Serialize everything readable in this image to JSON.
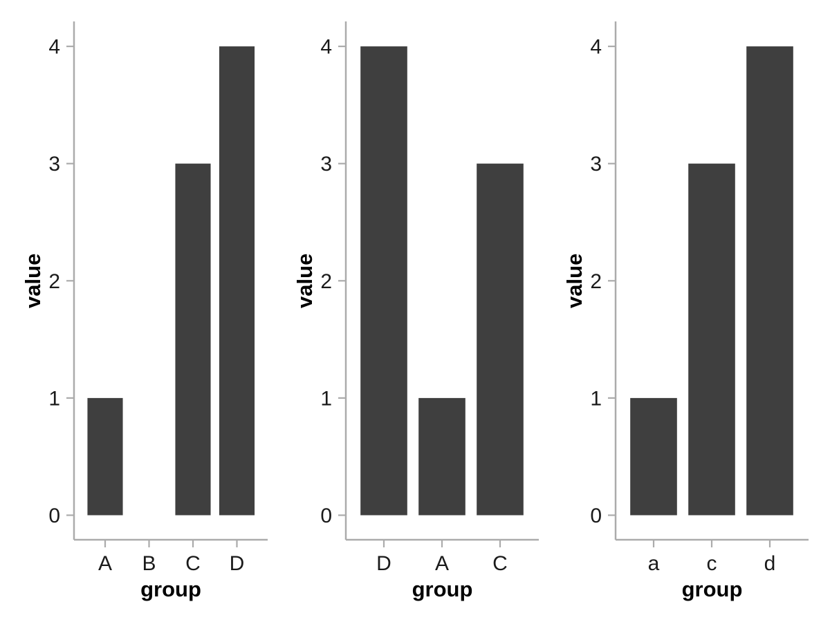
{
  "figure": {
    "background": "#ffffff",
    "description": "Three side-by-side bar chart panels"
  },
  "style": {
    "bar_color": "#3f3f3f",
    "axis_color": "#ababab",
    "tick_label_color": "#1a1a1a",
    "axis_title_color": "#000000"
  },
  "chart_data": [
    {
      "type": "bar",
      "panel": "left",
      "title": "",
      "xlabel": "group",
      "ylabel": "value",
      "categories": [
        "A",
        "B",
        "C",
        "D"
      ],
      "values": [
        1,
        0,
        3,
        4
      ],
      "ylim": [
        0,
        4
      ],
      "yticks": [
        0,
        1,
        2,
        3,
        4
      ],
      "grid": false,
      "legend": null
    },
    {
      "type": "bar",
      "panel": "middle",
      "title": "",
      "xlabel": "group",
      "ylabel": "value",
      "categories": [
        "D",
        "A",
        "C"
      ],
      "values": [
        4,
        1,
        3
      ],
      "ylim": [
        0,
        4
      ],
      "yticks": [
        0,
        1,
        2,
        3,
        4
      ],
      "grid": false,
      "legend": null
    },
    {
      "type": "bar",
      "panel": "right",
      "title": "",
      "xlabel": "group",
      "ylabel": "value",
      "categories": [
        "a",
        "c",
        "d"
      ],
      "values": [
        1,
        3,
        4
      ],
      "ylim": [
        0,
        4
      ],
      "yticks": [
        0,
        1,
        2,
        3,
        4
      ],
      "grid": false,
      "legend": null
    }
  ]
}
